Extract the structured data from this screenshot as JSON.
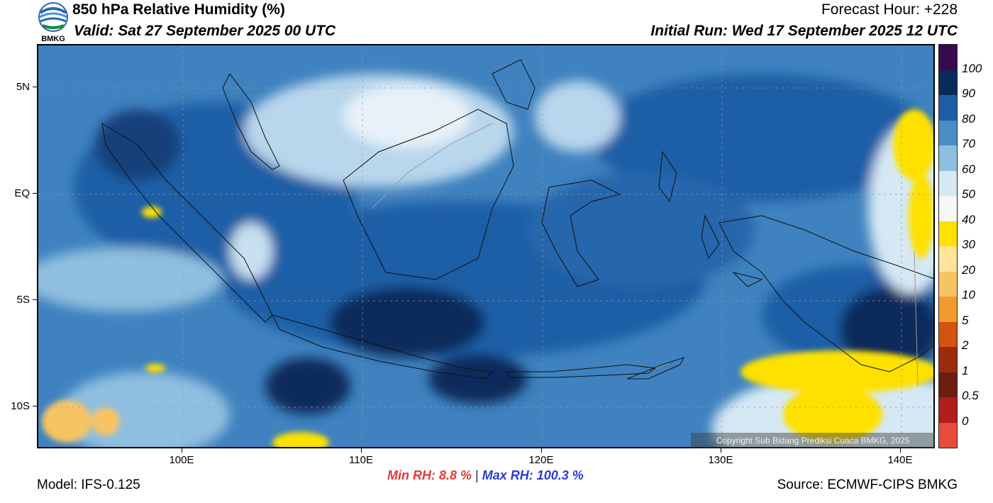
{
  "header": {
    "title": "850 hPa Relative Humidity (%)",
    "valid": "Valid: Sat 27 September 2025 00 UTC",
    "forecast_hour": "Forecast Hour: +228",
    "initial_run": "Initial Run: Wed 17 September 2025 12 UTC",
    "logo_text": "BMKG"
  },
  "axes": {
    "lat_labels": [
      "5N",
      "EQ",
      "5S",
      "10S"
    ],
    "lon_labels": [
      "100E",
      "110E",
      "120E",
      "130E",
      "140E"
    ]
  },
  "colorbar": {
    "labels": [
      "100",
      "90",
      "80",
      "70",
      "60",
      "50",
      "40",
      "30",
      "20",
      "10",
      "5",
      "2",
      "1",
      "0.5",
      "0"
    ],
    "colors": [
      "#3a0a4e",
      "#0b2a5c",
      "#1f5ea6",
      "#4a8dc4",
      "#8fbfe0",
      "#d5e8f4",
      "#f7f7f7",
      "#ffe100",
      "#ffe49a",
      "#f7c463",
      "#f59a2e",
      "#d4530e",
      "#9c2b0b",
      "#6b1d10",
      "#b01d1d",
      "#e84d3c"
    ]
  },
  "stats": {
    "min_label": "Min RH:   8.8 %",
    "separator": "|",
    "max_label": "Max RH: 100.3 %"
  },
  "footer": {
    "model": "Model: IFS-0.125",
    "source": "Source: ECMWF-CIPS BMKG",
    "copyright": "Copyright Sub Bidang Prediksi Cuaca BMKG, 2025"
  }
}
